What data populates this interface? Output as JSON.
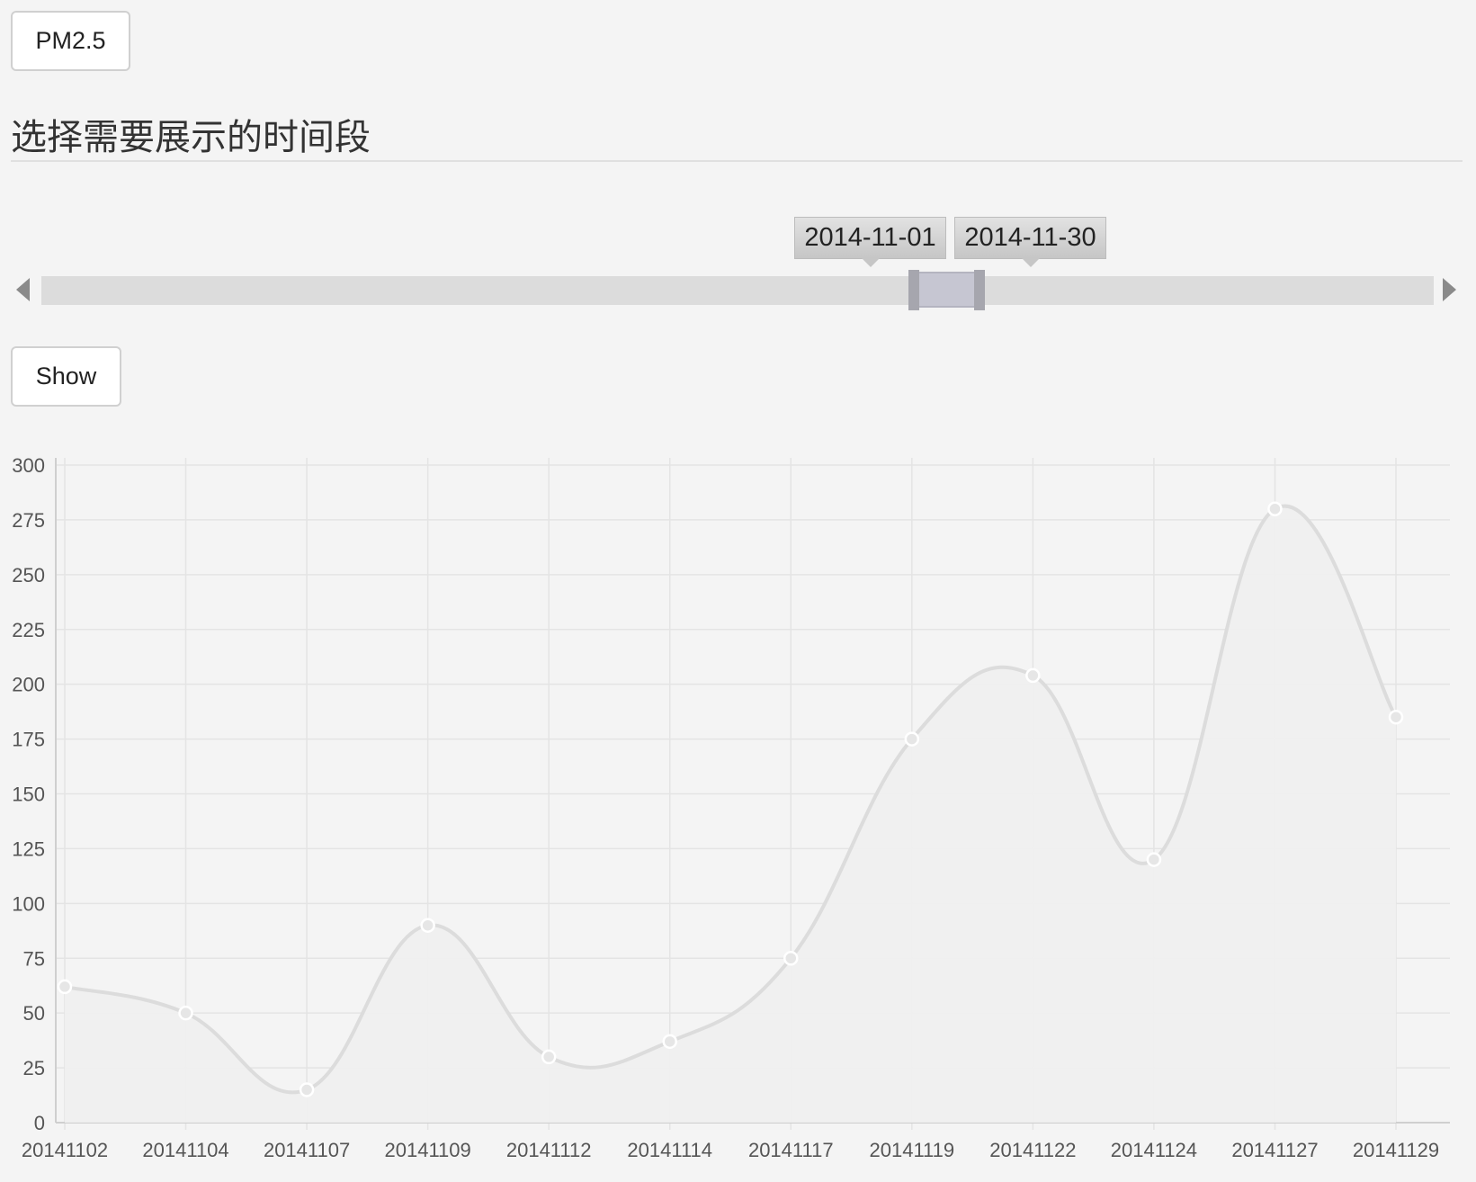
{
  "buttons": {
    "pollutant_label": "PM2.5",
    "show_label": "Show"
  },
  "section": {
    "title": "选择需要展示的时间段"
  },
  "slider": {
    "start_label": "2014-11-01",
    "end_label": "2014-11-30"
  },
  "colors": {
    "background": "#f4f4f4",
    "line": "#dcdcdc",
    "fill": "#efefef",
    "grid": "#e4e4e4",
    "slider_range": "#c6c6d2"
  },
  "chart_data": {
    "type": "line",
    "smooth": true,
    "area_fill": true,
    "title": "",
    "xlabel": "",
    "ylabel": "",
    "categories": [
      "20141102",
      "20141104",
      "20141107",
      "20141109",
      "20141112",
      "20141114",
      "20141117",
      "20141119",
      "20141122",
      "20141124",
      "20141127",
      "20141129"
    ],
    "values": [
      62,
      50,
      15,
      90,
      30,
      37,
      75,
      175,
      204,
      120,
      280,
      185
    ],
    "ylim": [
      0,
      300
    ],
    "yticks": [
      0,
      25,
      50,
      75,
      100,
      125,
      150,
      175,
      200,
      225,
      250,
      275,
      300
    ],
    "grid": true,
    "legend": "none"
  }
}
